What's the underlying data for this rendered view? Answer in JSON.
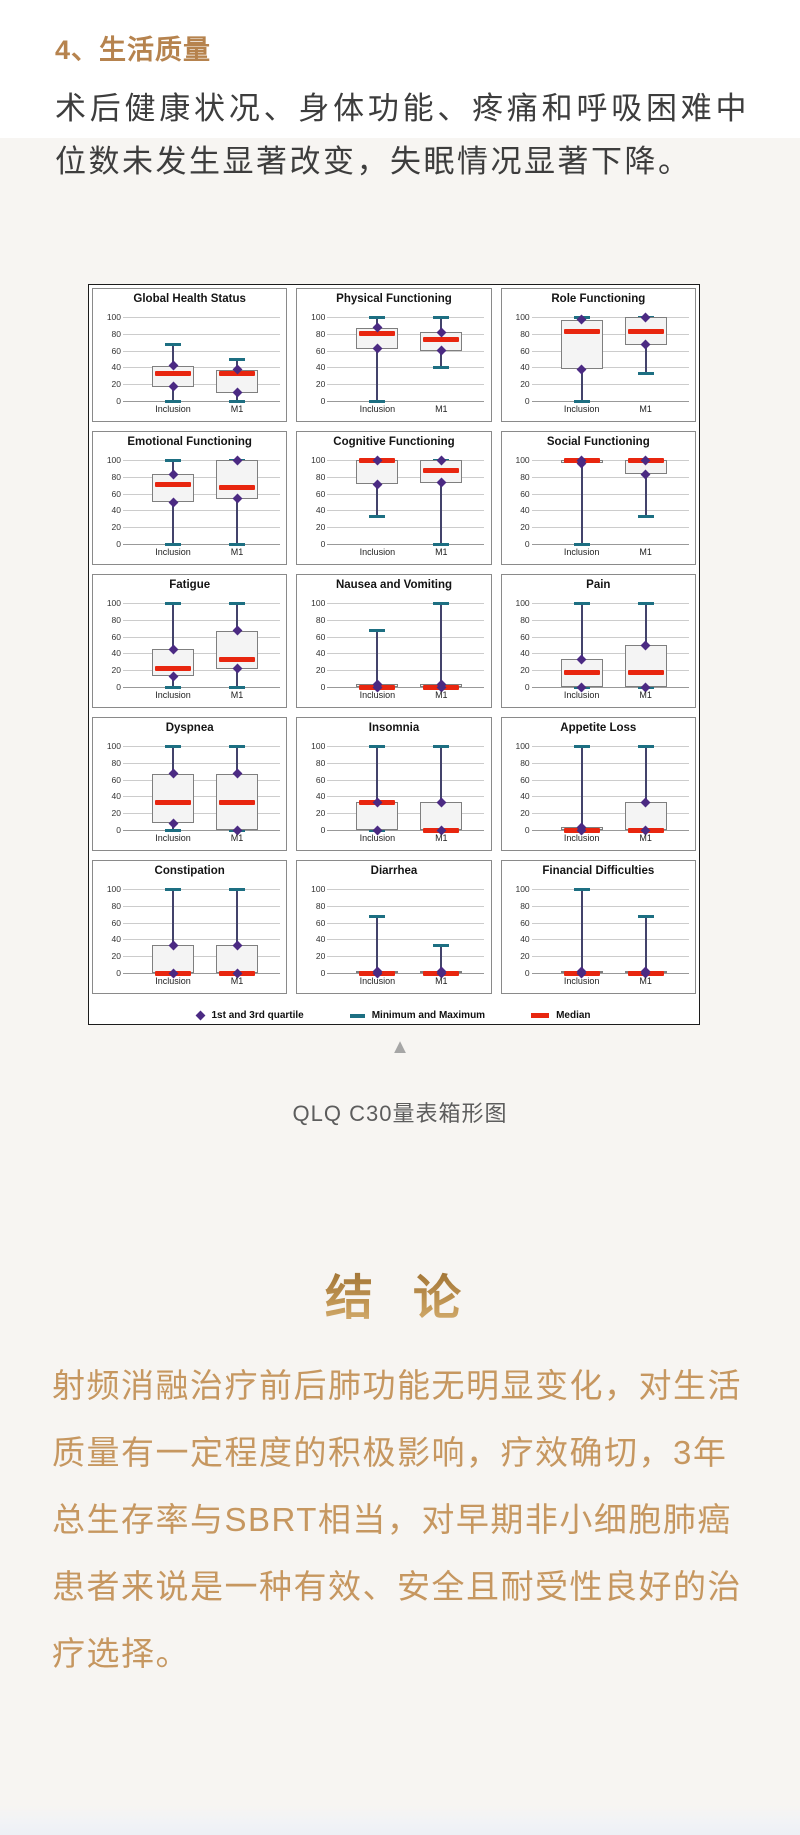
{
  "page": {
    "background": "#f7f5f2",
    "top_background": "#ffffff",
    "accent": "#b6834e"
  },
  "section": {
    "heading": "4、生活质量",
    "paragraph": "术后健康状况、身体功能、疼痛和呼吸困难中位数未发生显著改变，失眠情况显著下降。"
  },
  "figure": {
    "collapse_icon": "▲",
    "caption": "QLQ C30量表箱形图"
  },
  "conclusion": {
    "heading": "结 论",
    "paragraph": "射频消融治疗前后肺功能无明显变化，对生活质量有一定程度的积极影响，疗效确切，3年总生存率与SBRT相当，对早期非小细胞肺癌患者来说是一种有效、安全且耐受性良好的治疗选择。"
  },
  "chart_data": {
    "type": "boxplot-grid",
    "grid": "3 columns x 5 rows",
    "categories": [
      "Inclusion",
      "M1"
    ],
    "y_ticks": [
      100,
      80,
      60,
      40,
      20,
      0
    ],
    "ylim": [
      0,
      100
    ],
    "colors": {
      "median": "#e8260f",
      "whisker_line": "#43436b",
      "whisker_cap": "#1d6f82",
      "quartile_marker": "#4b2a83",
      "box_fill": "#f4f4f4",
      "box_border": "#7f7f7f"
    },
    "legend": [
      {
        "label": "1st and 3rd quartile",
        "marker": "diamond",
        "color": "#4b2a83"
      },
      {
        "label": "Minimum and Maximum",
        "marker": "dash",
        "color": "#1d6f82"
      },
      {
        "label": "Median",
        "marker": "dash-thick",
        "color": "#e8260f"
      }
    ],
    "panels": [
      {
        "title": "Global Health Status",
        "series": [
          {
            "min": 0,
            "q1": 17,
            "median": 33,
            "q3": 42,
            "max": 67
          },
          {
            "min": 0,
            "q1": 10,
            "median": 33,
            "q3": 37,
            "max": 50
          }
        ]
      },
      {
        "title": "Physical Functioning",
        "series": [
          {
            "min": 0,
            "q1": 62,
            "median": 80,
            "q3": 87,
            "max": 100
          },
          {
            "min": 40,
            "q1": 60,
            "median": 73,
            "q3": 82,
            "max": 100
          }
        ]
      },
      {
        "title": "Role Functioning",
        "series": [
          {
            "min": 0,
            "q1": 38,
            "median": 83,
            "q3": 97,
            "max": 100
          },
          {
            "min": 33,
            "q1": 67,
            "median": 83,
            "q3": 100,
            "max": 100
          }
        ]
      },
      {
        "title": "Emotional Functioning",
        "series": [
          {
            "min": 0,
            "q1": 50,
            "median": 71,
            "q3": 83,
            "max": 100
          },
          {
            "min": 0,
            "q1": 54,
            "median": 67,
            "q3": 100,
            "max": 100
          }
        ]
      },
      {
        "title": "Cognitive Functioning",
        "series": [
          {
            "min": 33,
            "q1": 71,
            "median": 100,
            "q3": 100,
            "max": 100
          },
          {
            "min": 0,
            "q1": 73,
            "median": 88,
            "q3": 100,
            "max": 100
          }
        ]
      },
      {
        "title": "Social Functioning",
        "series": [
          {
            "min": 0,
            "q1": 96,
            "median": 100,
            "q3": 100,
            "max": 100
          },
          {
            "min": 33,
            "q1": 83,
            "median": 100,
            "q3": 100,
            "max": 100
          }
        ]
      },
      {
        "title": "Fatigue",
        "series": [
          {
            "min": 0,
            "q1": 13,
            "median": 22,
            "q3": 45,
            "max": 100
          },
          {
            "min": 0,
            "q1": 22,
            "median": 33,
            "q3": 67,
            "max": 100
          }
        ]
      },
      {
        "title": "Nausea and Vomiting",
        "series": [
          {
            "min": 0,
            "q1": 0,
            "median": 0,
            "q3": 3,
            "max": 67
          },
          {
            "min": 0,
            "q1": 0,
            "median": 0,
            "q3": 3,
            "max": 100
          }
        ]
      },
      {
        "title": "Pain",
        "series": [
          {
            "min": 0,
            "q1": 0,
            "median": 17,
            "q3": 33,
            "max": 100
          },
          {
            "min": 0,
            "q1": 0,
            "median": 17,
            "q3": 50,
            "max": 100
          }
        ]
      },
      {
        "title": "Dyspnea",
        "series": [
          {
            "min": 0,
            "q1": 8,
            "median": 33,
            "q3": 67,
            "max": 100
          },
          {
            "min": 0,
            "q1": 0,
            "median": 33,
            "q3": 67,
            "max": 100
          }
        ]
      },
      {
        "title": "Insomnia",
        "series": [
          {
            "min": 0,
            "q1": 0,
            "median": 33,
            "q3": 33,
            "max": 100
          },
          {
            "min": 0,
            "q1": 0,
            "median": 0,
            "q3": 33,
            "max": 100
          }
        ]
      },
      {
        "title": "Appetite Loss",
        "series": [
          {
            "min": 0,
            "q1": 0,
            "median": 0,
            "q3": 3,
            "max": 100
          },
          {
            "min": 0,
            "q1": 0,
            "median": 0,
            "q3": 33,
            "max": 100
          }
        ]
      },
      {
        "title": "Constipation",
        "series": [
          {
            "min": 0,
            "q1": 0,
            "median": 0,
            "q3": 33,
            "max": 100
          },
          {
            "min": 0,
            "q1": 0,
            "median": 0,
            "q3": 33,
            "max": 100
          }
        ]
      },
      {
        "title": "Diarrhea",
        "series": [
          {
            "min": 0,
            "q1": 0,
            "median": 0,
            "q3": 2,
            "max": 67
          },
          {
            "min": 0,
            "q1": 0,
            "median": 0,
            "q3": 2,
            "max": 33
          }
        ]
      },
      {
        "title": "Financial Difficulties",
        "series": [
          {
            "min": 0,
            "q1": 0,
            "median": 0,
            "q3": 2,
            "max": 100
          },
          {
            "min": 0,
            "q1": 0,
            "median": 0,
            "q3": 2,
            "max": 67
          }
        ]
      }
    ]
  }
}
